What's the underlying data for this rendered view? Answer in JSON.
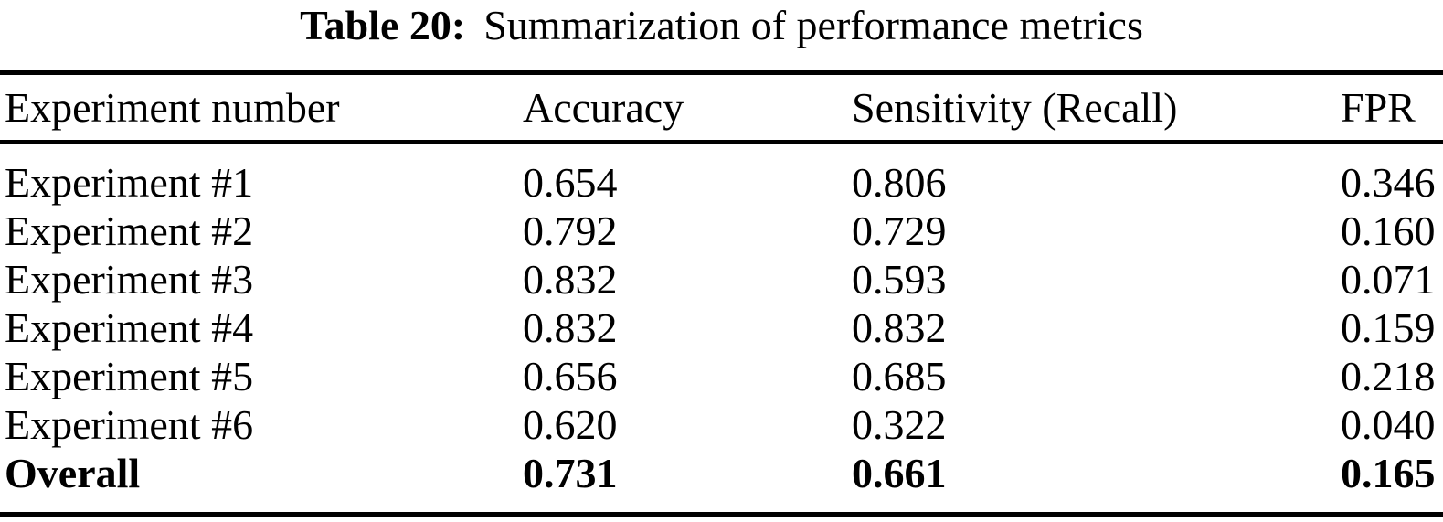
{
  "caption": {
    "label": "Table 20:",
    "text": "Summarization of performance metrics"
  },
  "chart_data": {
    "type": "table",
    "title": "Table 20: Summarization of performance metrics",
    "columns": [
      "Experiment number",
      "Accuracy",
      "Sensitivity (Recall)",
      "FPR"
    ],
    "rows": [
      [
        "Experiment #1",
        "0.654",
        "0.806",
        "0.346"
      ],
      [
        "Experiment #2",
        "0.792",
        "0.729",
        "0.160"
      ],
      [
        "Experiment #3",
        "0.832",
        "0.593",
        "0.071"
      ],
      [
        "Experiment #4",
        "0.832",
        "0.832",
        "0.159"
      ],
      [
        "Experiment #5",
        "0.656",
        "0.685",
        "0.218"
      ],
      [
        "Experiment #6",
        "0.620",
        "0.322",
        "0.040"
      ],
      [
        "Overall",
        "0.731",
        "0.661",
        "0.165"
      ]
    ],
    "bold_rows": [
      6
    ],
    "colors": {
      "text": "#000000",
      "background": "#ffffff",
      "rule": "#000000"
    }
  }
}
